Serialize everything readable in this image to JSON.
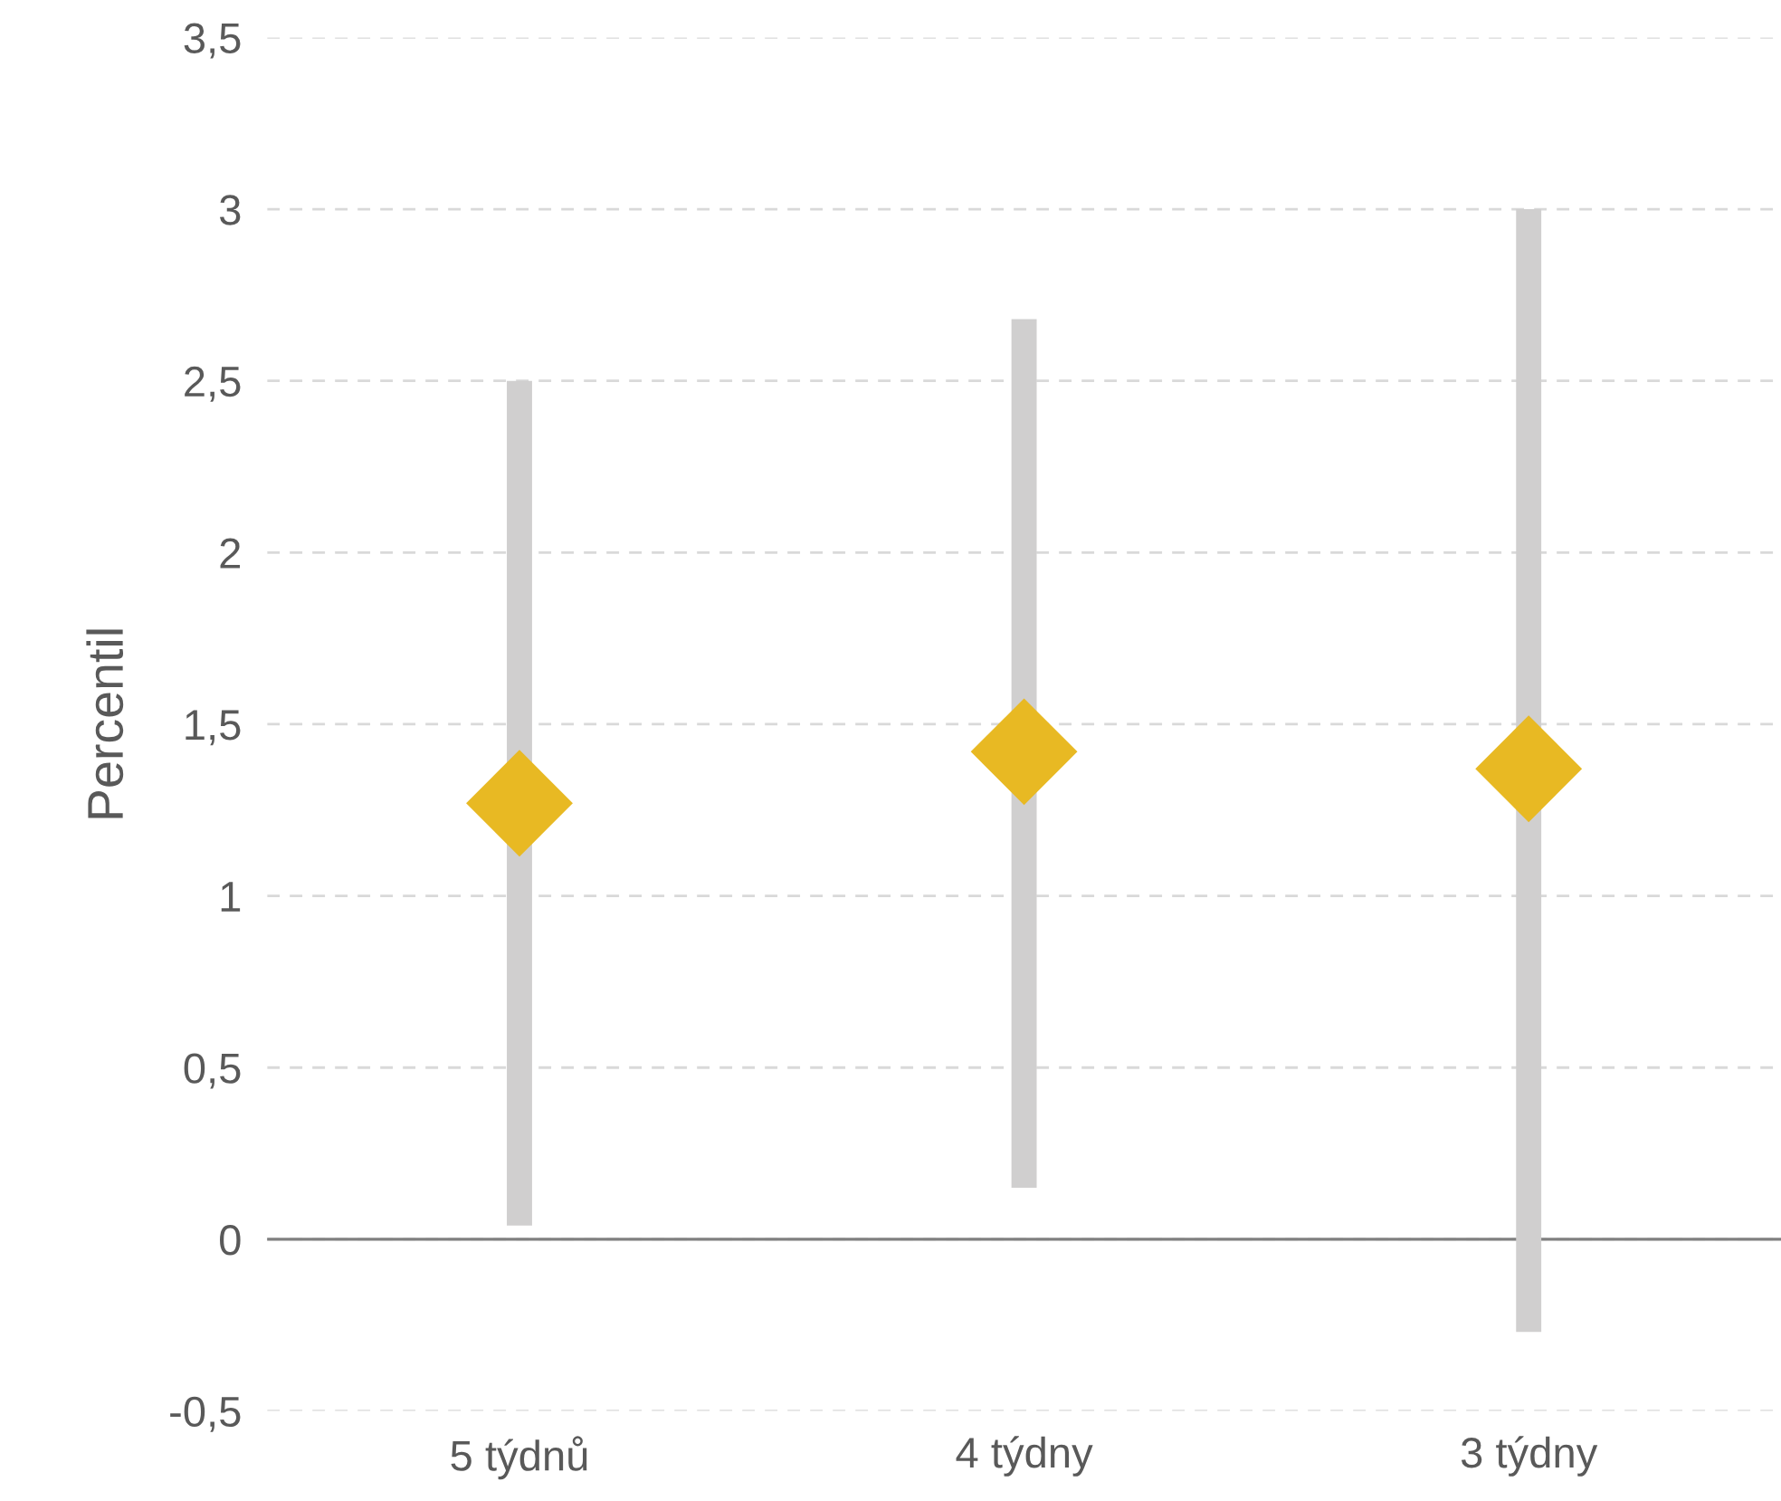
{
  "chart_data": {
    "type": "bar",
    "ylabel": "Percentil",
    "categories": [
      "5 týdnů",
      "4 týdny",
      "3 týdny"
    ],
    "series": [
      {
        "color": "#d0cfcf",
        "base": [
          0.04,
          0.15,
          -0.27
        ],
        "values": [
          2.46,
          2.53,
          3.27
        ]
      },
      {
        "type": "scatter",
        "color": "#e8b923",
        "marker": "diamond",
        "x": [
          "5 týdnů",
          "4 týdny",
          "3 týdny"
        ],
        "values": [
          1.27,
          1.42,
          1.37
        ]
      }
    ],
    "ylim": [
      -0.5,
      3.5
    ],
    "yticks": [
      {
        "value": -0.5,
        "label": "-0,5"
      },
      0,
      {
        "value": 0.5,
        "label": "0,5"
      },
      1,
      {
        "value": 1.5,
        "label": "1,5"
      },
      2,
      {
        "value": 2.5,
        "label": "2,5"
      },
      3,
      {
        "value": 3.5,
        "label": "3,5"
      }
    ],
    "ref_lines": [
      {
        "axis": "y",
        "value": 0,
        "color": "#808080"
      }
    ],
    "grid": "y"
  }
}
